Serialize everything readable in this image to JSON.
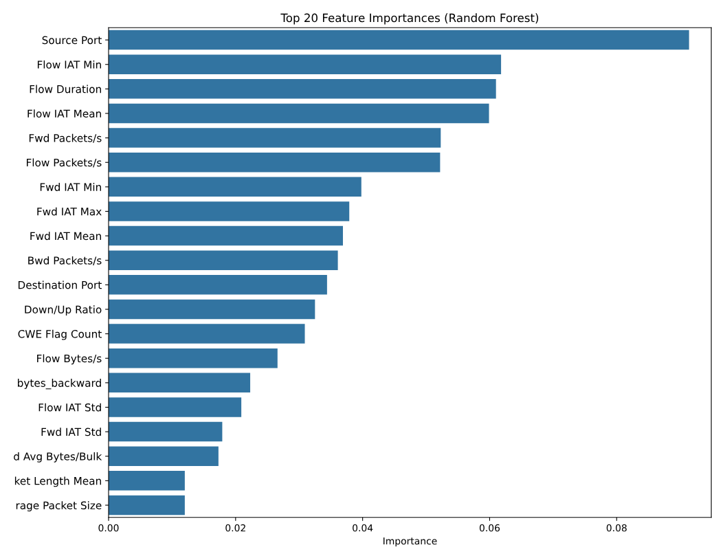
{
  "chart_data": {
    "type": "bar",
    "orientation": "horizontal",
    "title": "Top 20 Feature Importances (Random Forest)",
    "xlabel": "Importance",
    "categories": [
      "Source Port",
      "Flow IAT Min",
      "Flow Duration",
      "Flow IAT Mean",
      "Fwd Packets/s",
      "Flow Packets/s",
      "Fwd IAT Min",
      "Fwd IAT Max",
      "Fwd IAT Mean",
      "Bwd Packets/s",
      "Destination Port",
      "Down/Up Ratio",
      "CWE Flag Count",
      "Flow Bytes/s",
      "bytes_backward",
      "Flow IAT Std",
      "Fwd IAT Std",
      "d Avg Bytes/Bulk",
      "ket Length Mean",
      "rage Packet Size"
    ],
    "values": [
      0.0914,
      0.0618,
      0.061,
      0.0599,
      0.0523,
      0.0522,
      0.0398,
      0.0379,
      0.0369,
      0.0361,
      0.0344,
      0.0325,
      0.0309,
      0.0266,
      0.0223,
      0.0209,
      0.0179,
      0.0173,
      0.012,
      0.012
    ],
    "color": "#3274a1",
    "xlim": [
      0,
      0.0949
    ],
    "xticks": [
      {
        "value": 0,
        "label": "0.00"
      },
      {
        "value": 0.02,
        "label": "0.02"
      },
      {
        "value": 0.04,
        "label": "0.04"
      },
      {
        "value": 0.06,
        "label": "0.06"
      },
      {
        "value": 0.08,
        "label": "0.08"
      }
    ],
    "grid": false,
    "legend": false
  }
}
